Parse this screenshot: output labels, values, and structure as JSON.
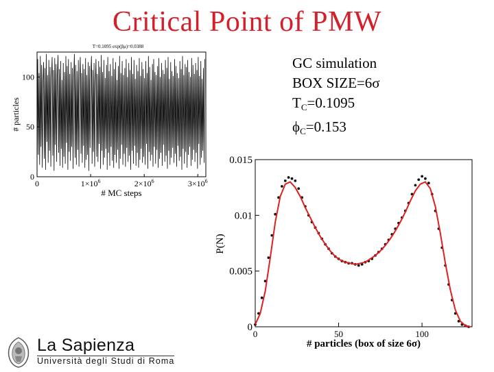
{
  "slide": {
    "title": "Critical Point of PMW",
    "info": {
      "line1": "GC simulation",
      "line2": "BOX SIZE=6σ",
      "tc_symbol": "T",
      "tc_sub": "C",
      "tc_value": "=0.1095",
      "phic_symbol": "ϕ",
      "phic_sub": "C",
      "phic_value": "=0.153"
    }
  },
  "logo": {
    "name": "La Sapienza",
    "subtitle": "Università degli Studi di Roma",
    "emblem": "sapienza-crest-icon"
  },
  "colors": {
    "title": "#d4202a",
    "fit_line": "#e0201e",
    "points": "#111111"
  },
  "chart_data": [
    {
      "type": "line",
      "title": "T=0.1095  exp(βμ)=0.0388",
      "xlabel": "# MC steps",
      "ylabel": "# particles",
      "xlim": [
        0,
        3150000
      ],
      "ylim": [
        0,
        125
      ],
      "xticks": [
        {
          "value": 0,
          "label": "0"
        },
        {
          "value": 1000000,
          "label": "1×10",
          "exp": "6"
        },
        {
          "value": 2000000,
          "label": "2×10",
          "exp": "6"
        },
        {
          "value": 3000000,
          "label": "3×10",
          "exp": "6"
        }
      ],
      "yticks": [
        {
          "value": 0,
          "label": "0"
        },
        {
          "value": 50,
          "label": "50"
        },
        {
          "value": 100,
          "label": "100"
        }
      ],
      "grid": false,
      "series": [
        {
          "values": [
            8,
            118,
            22,
            104,
            12,
            121,
            30,
            112,
            9,
            96,
            115,
            18,
            109,
            7,
            123,
            35,
            102,
            14,
            117,
            26,
            110,
            10,
            99,
            120,
            21,
            107,
            6,
            119,
            32,
            113,
            15,
            101,
            122,
            24,
            108,
            11,
            116,
            28,
            97,
            9,
            114,
            20,
            105,
            13,
            121,
            34,
            111,
            7,
            118,
            25,
            103,
            16,
            115,
            30,
            109,
            8,
            100,
            123,
            19,
            112,
            12,
            106,
            27,
            117,
            10,
            98,
            120,
            23,
            104,
            14,
            113,
            31,
            108,
            9,
            119,
            17,
            102,
            22,
            115,
            6,
            111,
            29,
            100,
            121,
            13,
            107,
            25,
            114,
            10,
            96,
            118,
            20,
            103,
            15,
            116,
            33,
            110,
            8,
            122,
            26,
            105,
            12,
            117,
            19,
            99,
            28,
            112,
            7,
            120,
            24,
            106,
            11,
            113,
            30,
            101,
            16,
            119,
            9,
            108,
            22,
            115,
            14,
            97,
            27,
            111,
            8,
            121,
            18,
            104,
            32,
            116,
            12,
            102,
            23,
            109,
            10,
            118,
            29,
            100,
            15,
            114,
            21,
            107,
            7,
            120,
            26,
            103,
            13,
            117,
            31,
            98,
            11,
            112,
            24,
            106,
            9,
            119,
            17,
            101,
            28,
            115,
            14,
            108,
            20,
            99,
            12,
            116,
            33,
            104,
            8,
            121,
            25,
            110,
            16,
            97,
            22,
            113,
            10,
            118,
            30,
            105,
            13,
            102,
            27,
            111,
            9,
            119,
            18,
            100,
            24,
            114,
            11,
            107,
            32,
            103,
            15,
            117,
            21,
            109,
            8,
            120,
            26,
            98,
            12,
            115,
            19,
            106,
            29,
            101,
            14,
            118,
            23,
            111,
            10,
            104,
            31,
            99,
            16,
            116,
            20,
            108,
            7,
            121,
            28,
            102,
            13,
            113,
            25,
            110,
            9,
            117,
            22,
            105,
            30,
            100,
            11,
            119,
            17,
            112,
            27,
            103,
            15,
            114,
            24,
            107,
            8,
            120,
            33,
            101,
            12,
            116,
            19,
            98,
            26,
            109,
            14,
            118
          ],
          "x_range": [
            0,
            3130000
          ]
        }
      ]
    },
    {
      "type": "scatter",
      "xlabel": "# particles (box of size 6σ)",
      "ylabel": "P(N)",
      "xlim": [
        0,
        130
      ],
      "ylim": [
        0,
        0.015
      ],
      "xticks": [
        {
          "value": 0,
          "label": "0"
        },
        {
          "value": 50,
          "label": "50"
        },
        {
          "value": 100,
          "label": "100"
        }
      ],
      "yticks": [
        {
          "value": 0,
          "label": "0"
        },
        {
          "value": 0.005,
          "label": "0.005"
        },
        {
          "value": 0.01,
          "label": "0.01"
        },
        {
          "value": 0.015,
          "label": "0.015"
        }
      ],
      "grid": false,
      "series": [
        {
          "kind": "points",
          "x": [
            0,
            2,
            4,
            6,
            8,
            10,
            12,
            14,
            16,
            18,
            20,
            22,
            24,
            26,
            28,
            30,
            32,
            34,
            36,
            38,
            40,
            42,
            44,
            46,
            48,
            50,
            52,
            54,
            56,
            58,
            60,
            62,
            64,
            66,
            68,
            70,
            72,
            74,
            76,
            78,
            80,
            82,
            84,
            86,
            88,
            90,
            92,
            94,
            96,
            98,
            100,
            102,
            104,
            106,
            108,
            110,
            112,
            114,
            116,
            118,
            120,
            122,
            124,
            126,
            128
          ],
          "y": [
            0.0002,
            0.0012,
            0.0026,
            0.0041,
            0.0062,
            0.0082,
            0.0101,
            0.0116,
            0.0126,
            0.0131,
            0.0134,
            0.0133,
            0.0131,
            0.0124,
            0.0116,
            0.0108,
            0.01,
            0.0094,
            0.0089,
            0.0084,
            0.0079,
            0.0074,
            0.007,
            0.0066,
            0.0063,
            0.0061,
            0.0059,
            0.0058,
            0.0057,
            0.0057,
            0.0056,
            0.0055,
            0.0056,
            0.0058,
            0.0059,
            0.0061,
            0.0064,
            0.0067,
            0.007,
            0.0074,
            0.0078,
            0.0083,
            0.0088,
            0.0093,
            0.0098,
            0.0104,
            0.0111,
            0.0119,
            0.0127,
            0.0132,
            0.0135,
            0.0133,
            0.0129,
            0.0119,
            0.0104,
            0.0088,
            0.0071,
            0.0055,
            0.0038,
            0.0024,
            0.0012,
            0.0005,
            0.0002,
            0.0001,
            0.0
          ]
        },
        {
          "kind": "fit",
          "x": [
            0,
            3,
            6,
            9,
            12,
            15,
            18,
            21,
            24,
            27,
            30,
            33,
            36,
            39,
            42,
            45,
            48,
            51,
            54,
            57,
            60,
            63,
            66,
            69,
            72,
            75,
            78,
            81,
            84,
            87,
            90,
            93,
            96,
            99,
            102,
            105,
            108,
            111,
            114,
            117,
            120,
            123,
            126,
            129
          ],
          "y": [
            0.0002,
            0.0012,
            0.0032,
            0.0062,
            0.0094,
            0.0117,
            0.0128,
            0.013,
            0.0125,
            0.0117,
            0.0107,
            0.0098,
            0.0089,
            0.0081,
            0.0074,
            0.0068,
            0.0063,
            0.006,
            0.0058,
            0.0057,
            0.0056,
            0.0057,
            0.0058,
            0.0061,
            0.0064,
            0.0068,
            0.0073,
            0.0079,
            0.0086,
            0.0094,
            0.0103,
            0.0113,
            0.0122,
            0.0128,
            0.013,
            0.0124,
            0.0108,
            0.0084,
            0.0057,
            0.0033,
            0.0015,
            0.0005,
            0.0001,
            0.0
          ]
        }
      ]
    }
  ]
}
